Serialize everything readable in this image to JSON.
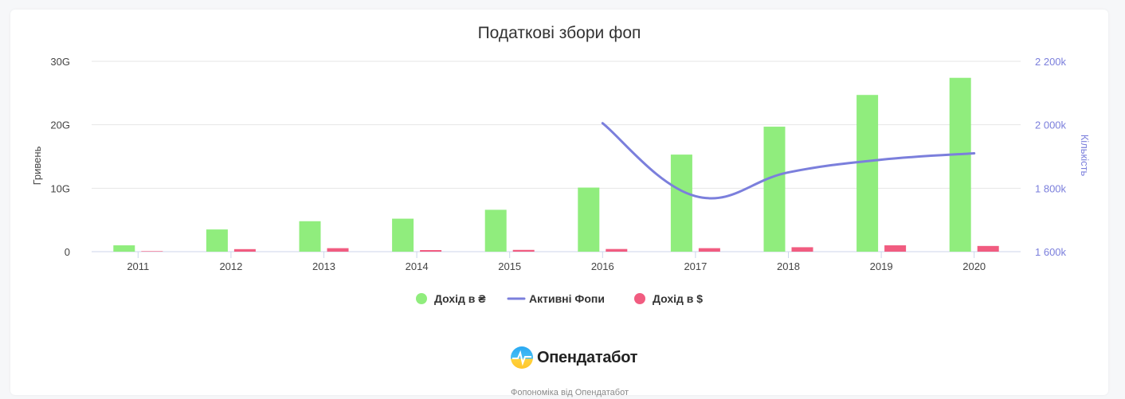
{
  "brand": {
    "name": "Опендатабот"
  },
  "credit": "Фопономіка від Опендатабот",
  "chart_data": {
    "type": "bar",
    "title": "Податкові збори фоп",
    "categories": [
      "2011",
      "2012",
      "2013",
      "2014",
      "2015",
      "2016",
      "2017",
      "2018",
      "2019",
      "2020"
    ],
    "x_tick_labels": [
      "2011",
      "2012",
      "2013",
      "2014",
      "2015",
      "2016",
      "2017",
      "2018",
      "2019",
      "2020"
    ],
    "y_left": {
      "label": "Гривень",
      "ylim": [
        0,
        30000000000
      ],
      "tick_labels": [
        "0",
        "10G",
        "20G",
        "30G"
      ],
      "tick_values": [
        0,
        10000000000,
        20000000000,
        30000000000
      ]
    },
    "y_right": {
      "label": "Кількість",
      "ylim": [
        1600000,
        2200000
      ],
      "tick_labels": [
        "1 600k",
        "1 800k",
        "2 000k",
        "2 200k"
      ],
      "tick_values": [
        1600000,
        1800000,
        2000000,
        2200000
      ]
    },
    "grid": true,
    "legend_position": "bottom-center",
    "series": [
      {
        "name": "Дохід в ₴",
        "type": "bar",
        "axis": "left",
        "color": "#90ed7d",
        "values": [
          1000000000,
          3500000000,
          4800000000,
          5200000000,
          6600000000,
          10100000000,
          15300000000,
          19700000000,
          24700000000,
          27400000000
        ]
      },
      {
        "name": "Активні Фопи",
        "type": "line",
        "axis": "right",
        "color": "#7b7fdc",
        "values": [
          null,
          null,
          null,
          null,
          null,
          2005000,
          1775000,
          1850000,
          1890000,
          1910000
        ]
      },
      {
        "name": "Дохід в $",
        "type": "bar",
        "axis": "left",
        "color": "#f15c80",
        "values": [
          80000000,
          400000000,
          550000000,
          250000000,
          280000000,
          420000000,
          550000000,
          700000000,
          1000000000,
          900000000
        ]
      }
    ]
  }
}
